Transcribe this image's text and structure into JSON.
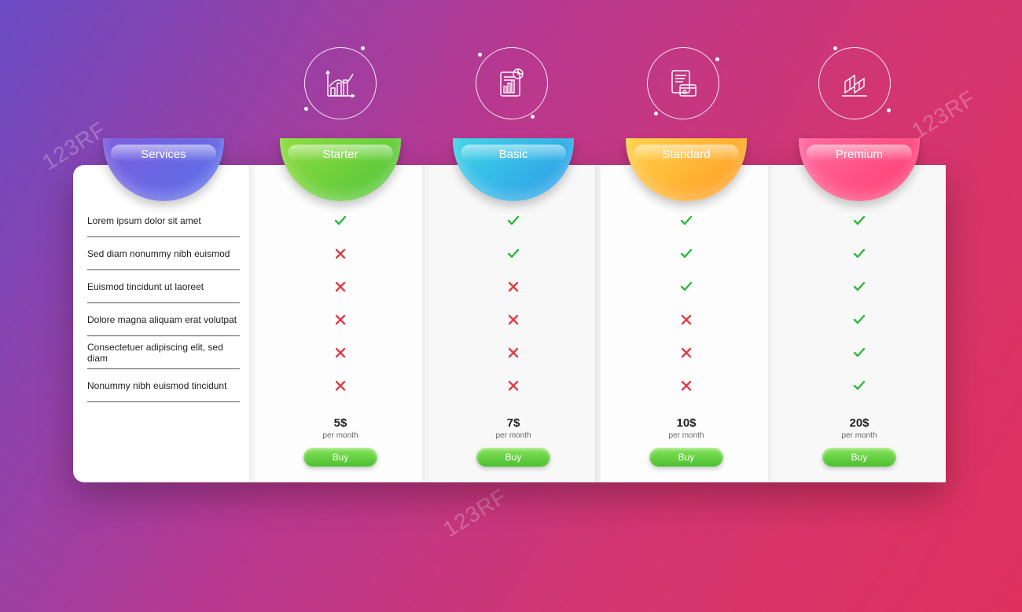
{
  "watermark": "123RF",
  "services_tab": {
    "label": "Services",
    "bg": "linear-gradient(135deg,#7a5ce0,#5a72e8)"
  },
  "features": [
    "Lorem ipsum dolor sit amet",
    "Sed diam nonummy nibh euismod",
    "Euismod tincidunt ut laoreet",
    "Dolore magna aliquam erat volutpat",
    "Consectetuer adipiscing elit, sed diam",
    "Nonummy nibh euismod tincidunt"
  ],
  "plans": [
    {
      "name": "Starter",
      "tab_bg": "linear-gradient(135deg,#8edc3e,#4fc43a)",
      "icon": "chart",
      "marks": [
        true,
        false,
        false,
        false,
        false,
        false
      ],
      "price": "5$",
      "per": "per month",
      "buy": "Buy"
    },
    {
      "name": "Basic",
      "tab_bg": "linear-gradient(135deg,#3fd4e6,#2a9ae8)",
      "icon": "report",
      "marks": [
        true,
        true,
        false,
        false,
        false,
        false
      ],
      "price": "7$",
      "per": "per month",
      "buy": "Buy"
    },
    {
      "name": "Standard",
      "tab_bg": "linear-gradient(135deg,#ffd24a,#ff9a20)",
      "icon": "card",
      "marks": [
        true,
        true,
        true,
        false,
        false,
        false
      ],
      "price": "10$",
      "per": "per month",
      "buy": "Buy"
    },
    {
      "name": "Premium",
      "tab_bg": "linear-gradient(135deg,#ff6aa0,#ff3b6d)",
      "icon": "cube",
      "marks": [
        true,
        true,
        true,
        true,
        true,
        true
      ],
      "price": "20$",
      "per": "per month",
      "buy": "Buy"
    }
  ],
  "mark_colors": {
    "check": "#2db83d",
    "cross": "#e23b4a"
  },
  "buy_btn_bg": "linear-gradient(180deg,#86e35a,#4bbf2f)"
}
